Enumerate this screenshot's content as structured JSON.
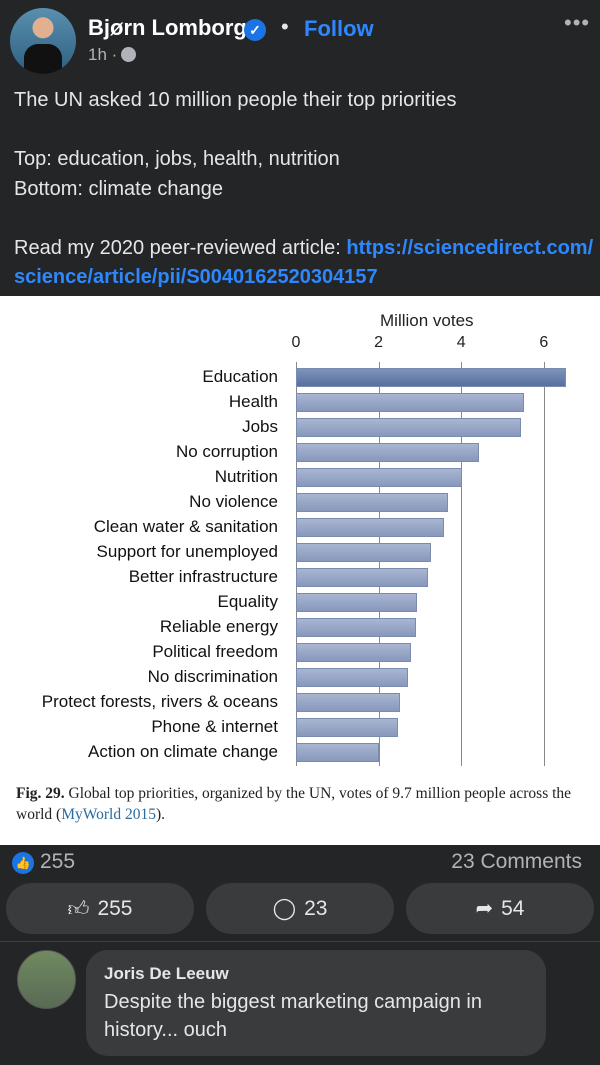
{
  "post": {
    "author": "Bjørn Lomborg",
    "follow_label": "Follow",
    "time": "1h",
    "separator": "·",
    "more_label": "•••",
    "text_lines": [
      "The UN asked 10 million people their top priorities",
      "",
      "Top: education, jobs, health, nutrition",
      "Bottom: climate change",
      ""
    ],
    "link_prefix": "Read my 2020 peer-reviewed article: ",
    "link": "https://sciencedirect.com/science/article/pii/S0040162520304157"
  },
  "chart_data": {
    "type": "bar",
    "orientation": "horizontal",
    "xlabel": "Million votes",
    "xlim": [
      0,
      6.7
    ],
    "xticks": [
      0,
      2,
      4,
      6
    ],
    "grid": true,
    "categories": [
      "Education",
      "Health",
      "Jobs",
      "No corruption",
      "Nutrition",
      "No violence",
      "Clean water & sanitation",
      "Support for unemployed",
      "Better infrastructure",
      "Equality",
      "Reliable energy",
      "Political freedom",
      "No discrimination",
      "Protect forests, rivers & oceans",
      "Phone & internet",
      "Action on climate change"
    ],
    "values": [
      6.54,
      5.52,
      5.45,
      4.43,
      4.02,
      3.68,
      3.58,
      3.27,
      3.2,
      2.93,
      2.9,
      2.78,
      2.71,
      2.52,
      2.47,
      2.0
    ],
    "caption_label": "Fig. 29.",
    "caption_text": " Global top priorities, organized by the UN, votes of 9.7 million people across the world (",
    "caption_ref": "MyWorld 2015",
    "caption_end": ")."
  },
  "stats": {
    "reactions": "255",
    "comments": "23 Comments"
  },
  "actions": {
    "like": "255",
    "comment": "23",
    "share": "54"
  },
  "comment": {
    "author": "Joris De Leeuw",
    "text": "Despite the biggest marketing campaign in history... ouch"
  },
  "colors": {
    "background": "#242526",
    "accent": "#2d88ff",
    "bar": "#8898bb"
  }
}
